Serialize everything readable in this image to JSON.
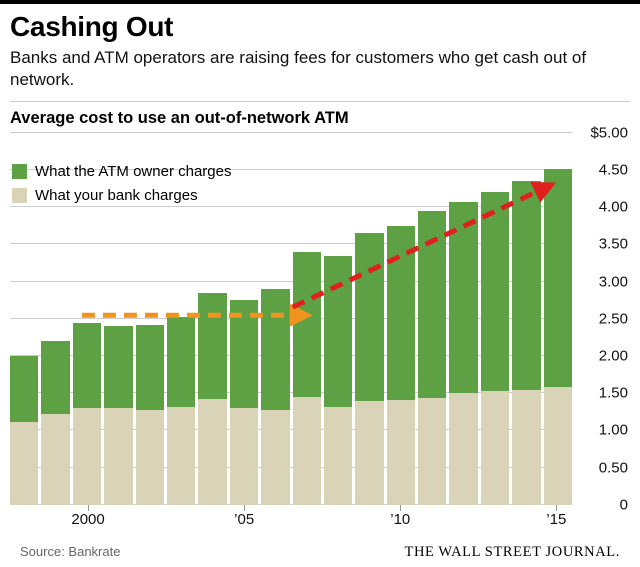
{
  "header": {
    "title": "Cashing Out",
    "subtitle": "Banks and ATM operators are raising fees for customers who get cash out of network."
  },
  "chart_data": {
    "type": "bar",
    "stacked": true,
    "title": "Average cost to use an out-of-network ATM",
    "categories": [
      "1998",
      "1999",
      "2000",
      "2001",
      "2002",
      "2003",
      "2004",
      "2005",
      "2006",
      "2007",
      "2008",
      "2009",
      "2010",
      "2011",
      "2012",
      "2013",
      "2014",
      "2015"
    ],
    "series": [
      {
        "name": "What your bank charges",
        "color": "#d9d3b7",
        "values": [
          1.12,
          1.22,
          1.3,
          1.3,
          1.28,
          1.32,
          1.42,
          1.3,
          1.28,
          1.45,
          1.32,
          1.4,
          1.41,
          1.44,
          1.5,
          1.53,
          1.55,
          1.58
        ]
      },
      {
        "name": "What the ATM owner charges",
        "color": "#5ea044",
        "values": [
          0.88,
          0.98,
          1.15,
          1.1,
          1.14,
          1.2,
          1.43,
          1.45,
          1.62,
          1.95,
          2.03,
          2.25,
          2.34,
          2.51,
          2.57,
          2.68,
          2.8,
          2.94
        ]
      }
    ],
    "ylim": [
      0,
      5
    ],
    "ytick_step": 0.5,
    "ytick_labels": [
      "$5.00",
      "4.50",
      "4.00",
      "3.50",
      "3.00",
      "2.50",
      "2.00",
      "1.50",
      "1.00",
      "0.50",
      "0"
    ],
    "xticks": [
      {
        "index": 2,
        "label": "2000"
      },
      {
        "index": 7,
        "label": "’05"
      },
      {
        "index": 12,
        "label": "’10"
      },
      {
        "index": 17,
        "label": "’15"
      }
    ],
    "grid": true,
    "legend_position": "top-left",
    "annotations": [
      {
        "type": "arrow",
        "name": "flat-trend-arrow",
        "color": "#f0931f",
        "x1": 0.128,
        "y1": 2.55,
        "x2": 0.528,
        "y2": 2.55
      },
      {
        "type": "arrow",
        "name": "rising-trend-arrow",
        "color": "#e01f1f",
        "x1": 0.503,
        "y1": 2.66,
        "x2": 0.962,
        "y2": 4.3
      }
    ]
  },
  "footer": {
    "source": "Source: Bankrate",
    "brand": "THE WALL STREET JOURNAL."
  }
}
